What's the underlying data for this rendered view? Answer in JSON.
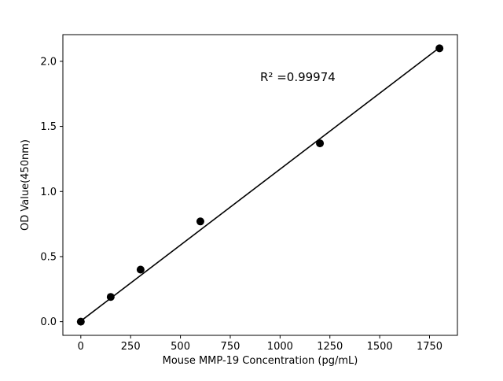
{
  "chart_data": {
    "type": "scatter",
    "x": [
      0,
      150,
      300,
      600,
      1200,
      1800
    ],
    "y": [
      0.0,
      0.19,
      0.4,
      0.77,
      1.37,
      2.1
    ],
    "fit_line": {
      "x": [
        0,
        1800
      ],
      "y": [
        0.005,
        2.105
      ]
    },
    "annotation": "R² =0.99974",
    "annotation_pos": [
      0.5,
      0.845
    ],
    "xlabel": "Mouse MMP-19 Concentration (pg/mL)",
    "ylabel": "OD Value(450nm)",
    "xticks": [
      0,
      250,
      500,
      750,
      1000,
      1250,
      1500,
      1750
    ],
    "yticks": [
      0.0,
      0.5,
      1.0,
      1.5,
      2.0
    ],
    "xlim": [
      -90,
      1890
    ],
    "ylim": [
      -0.105,
      2.205
    ],
    "marker_color": "#000000",
    "line_color": "#000000",
    "axis_color": "#000000",
    "background": "#ffffff",
    "legend": "none",
    "grid": false
  }
}
